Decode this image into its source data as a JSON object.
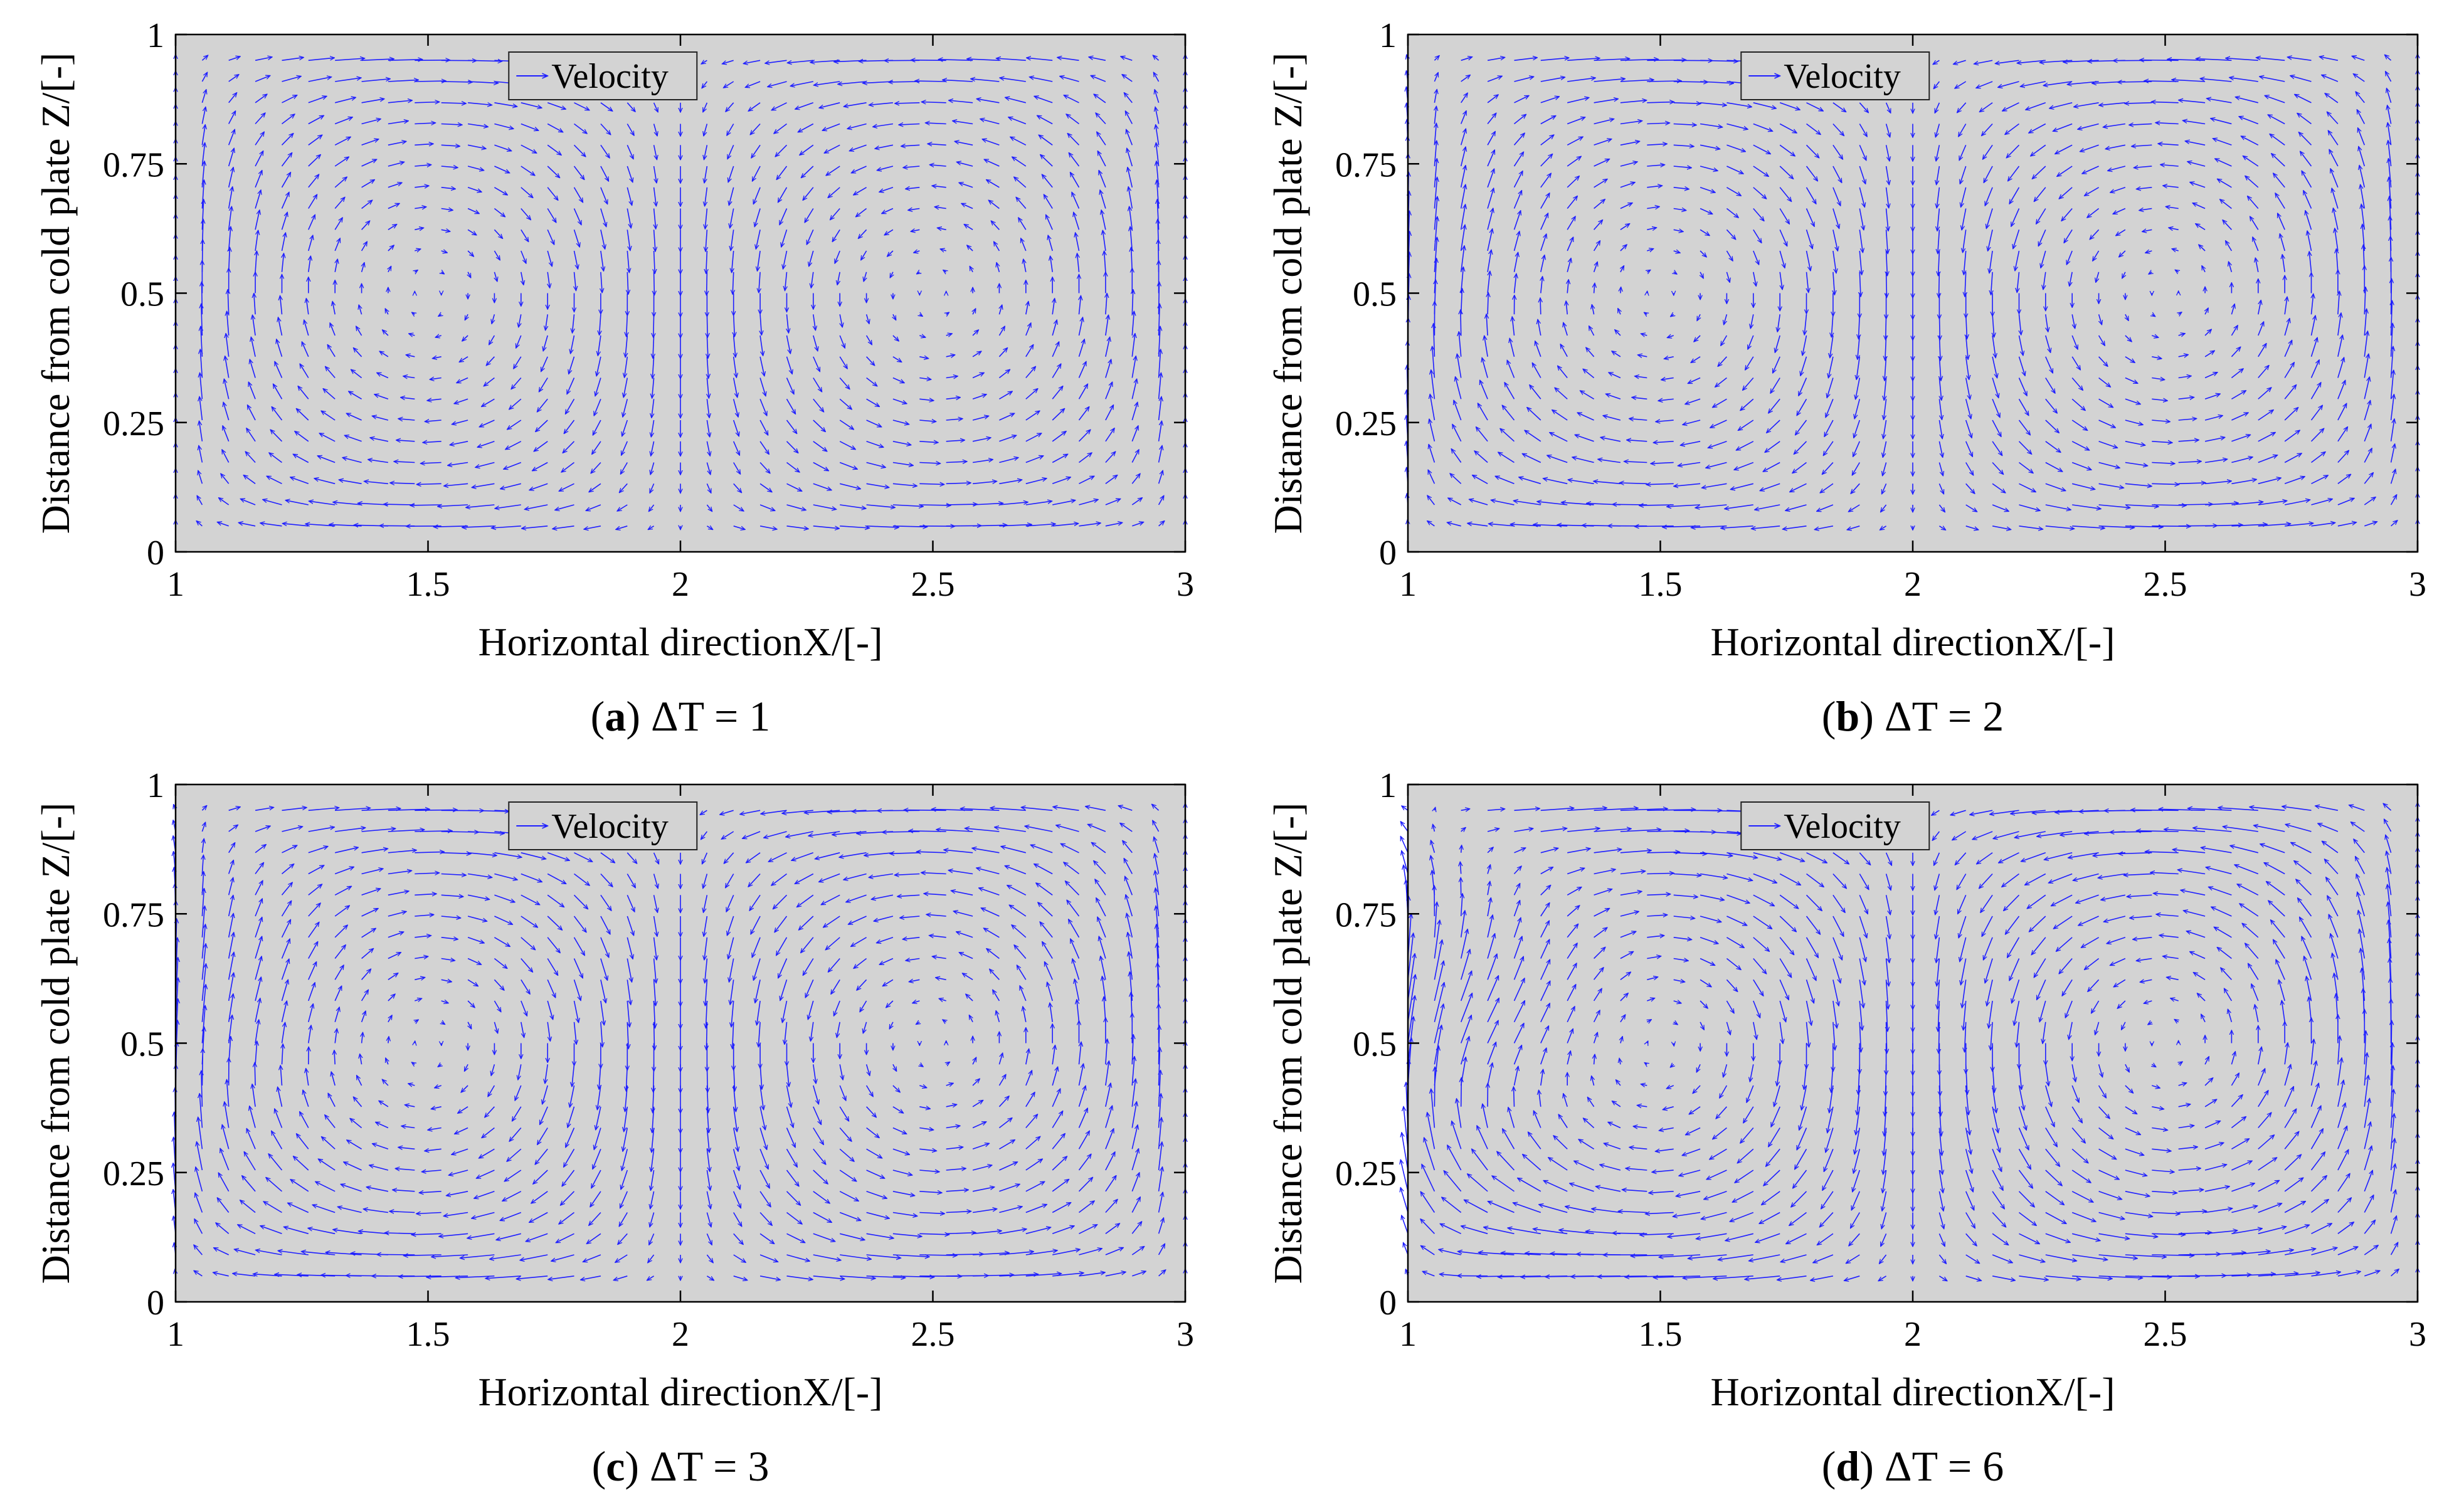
{
  "chart_data": [
    {
      "type": "quiver",
      "panel_letter": "a",
      "caption": "ΔT = 1",
      "xlabel": "Horizontal directionX/[-]",
      "ylabel": "Distance from cold plate Z/[-]",
      "xlim": [
        1,
        3
      ],
      "ylim": [
        0,
        1
      ],
      "xticks": [
        "1",
        "1.5",
        "2",
        "2.5",
        "3"
      ],
      "yticks": [
        "0",
        "0.25",
        "0.5",
        "0.75",
        "1"
      ],
      "legend": "Velocity",
      "legend_position": "top-center",
      "background": "#d3d3d3",
      "arrow_color": "#1f1fff",
      "flow": "two counter-rotating convection cells, upflow near x=1 and x=3, downflow near x=2",
      "strength": 1.0,
      "distortion": 0.0
    },
    {
      "type": "quiver",
      "panel_letter": "b",
      "caption": "ΔT = 2",
      "xlabel": "Horizontal directionX/[-]",
      "ylabel": "Distance from cold plate Z/[-]",
      "xlim": [
        1,
        3
      ],
      "ylim": [
        0,
        1
      ],
      "xticks": [
        "1",
        "1.5",
        "2",
        "2.5",
        "3"
      ],
      "yticks": [
        "0",
        "0.25",
        "0.5",
        "0.75",
        "1"
      ],
      "legend": "Velocity",
      "legend_position": "top-center",
      "background": "#d3d3d3",
      "arrow_color": "#1f1fff",
      "flow": "two counter-rotating convection cells",
      "strength": 1.1,
      "distortion": 0.1
    },
    {
      "type": "quiver",
      "panel_letter": "c",
      "caption": "ΔT = 3",
      "xlabel": "Horizontal directionX/[-]",
      "ylabel": "Distance from cold plate Z/[-]",
      "xlim": [
        1,
        3
      ],
      "ylim": [
        0,
        1
      ],
      "xticks": [
        "1",
        "1.5",
        "2",
        "2.5",
        "3"
      ],
      "yticks": [
        "0",
        "0.25",
        "0.5",
        "0.75",
        "1"
      ],
      "legend": "Velocity",
      "legend_position": "top-center",
      "background": "#d3d3d3",
      "arrow_color": "#1f1fff",
      "flow": "two counter-rotating convection cells",
      "strength": 1.2,
      "distortion": 0.15
    },
    {
      "type": "quiver",
      "panel_letter": "d",
      "caption": "ΔT = 6",
      "xlabel": "Horizontal directionX/[-]",
      "ylabel": "Distance from cold plate Z/[-]",
      "xlim": [
        1,
        3
      ],
      "ylim": [
        0,
        1
      ],
      "xticks": [
        "1",
        "1.5",
        "2",
        "2.5",
        "3"
      ],
      "yticks": [
        "0",
        "0.25",
        "0.5",
        "0.75",
        "1"
      ],
      "legend": "Velocity",
      "legend_position": "top-center",
      "background": "#d3d3d3",
      "arrow_color": "#1f1fff",
      "flow": "two counter-rotating convection cells, distorted near left wall",
      "strength": 1.35,
      "distortion": 0.45
    }
  ]
}
